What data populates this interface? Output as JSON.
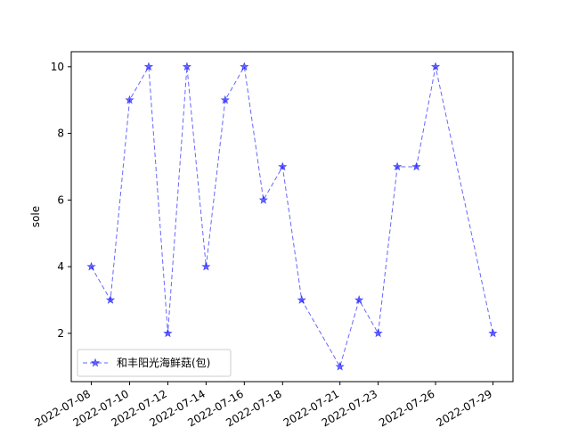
{
  "chart_data": {
    "type": "line",
    "x": [
      "2022-07-08",
      "2022-07-09",
      "2022-07-10",
      "2022-07-11",
      "2022-07-12",
      "2022-07-13",
      "2022-07-14",
      "2022-07-15",
      "2022-07-16",
      "2022-07-17",
      "2022-07-18",
      "2022-07-19",
      "2022-07-21",
      "2022-07-22",
      "2022-07-23",
      "2022-07-24",
      "2022-07-25",
      "2022-07-26",
      "2022-07-29"
    ],
    "series": [
      {
        "name": "和丰阳光海鲜菇(包)",
        "values": [
          4,
          3,
          9,
          10,
          2,
          10,
          4,
          9,
          10,
          6,
          7,
          3,
          1,
          3,
          2,
          7,
          7,
          10,
          2
        ],
        "color": "#0000ff",
        "marker": "star",
        "linestyle": "dashed"
      }
    ],
    "x_tick_labels": [
      "2022-07-08",
      "2022-07-10",
      "2022-07-12",
      "2022-07-14",
      "2022-07-16",
      "2022-07-18",
      "2022-07-21",
      "2022-07-23",
      "2022-07-26",
      "2022-07-29"
    ],
    "y_ticks": [
      2,
      4,
      6,
      8,
      10
    ],
    "ylabel": "sole",
    "xlabel": "",
    "title": "",
    "legend_position": "lower-left",
    "grid": false
  }
}
